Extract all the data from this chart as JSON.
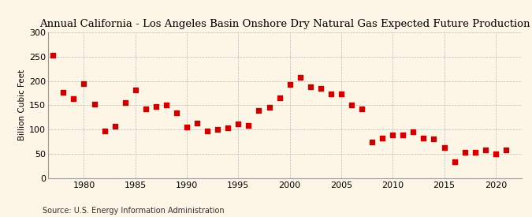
{
  "title": "Annual California - Los Angeles Basin Onshore Dry Natural Gas Expected Future Production",
  "ylabel": "Billion Cubic Feet",
  "source": "Source: U.S. Energy Information Administration",
  "background_color": "#fdf5e6",
  "marker_color": "#cc0000",
  "ylim": [
    0,
    300
  ],
  "xlim": [
    1976.5,
    2022.5
  ],
  "yticks": [
    0,
    50,
    100,
    150,
    200,
    250,
    300
  ],
  "xticks": [
    1980,
    1985,
    1990,
    1995,
    2000,
    2005,
    2010,
    2015,
    2020
  ],
  "years": [
    1977,
    1978,
    1979,
    1980,
    1981,
    1982,
    1983,
    1984,
    1985,
    1986,
    1987,
    1988,
    1989,
    1990,
    1991,
    1992,
    1993,
    1994,
    1995,
    1996,
    1997,
    1998,
    1999,
    2000,
    2001,
    2002,
    2003,
    2004,
    2005,
    2006,
    2007,
    2008,
    2009,
    2010,
    2011,
    2012,
    2013,
    2014,
    2015,
    2016,
    2017,
    2018,
    2019,
    2020,
    2021
  ],
  "values": [
    253,
    176,
    163,
    194,
    153,
    97,
    107,
    156,
    181,
    143,
    147,
    150,
    135,
    105,
    113,
    97,
    100,
    103,
    111,
    109,
    140,
    145,
    165,
    193,
    207,
    188,
    185,
    173,
    173,
    150,
    143,
    74,
    83,
    88,
    89,
    95,
    83,
    80,
    62,
    34,
    53,
    53,
    57,
    50,
    57
  ],
  "title_fontsize": 9.5,
  "ylabel_fontsize": 7.5,
  "tick_fontsize": 8,
  "source_fontsize": 7
}
